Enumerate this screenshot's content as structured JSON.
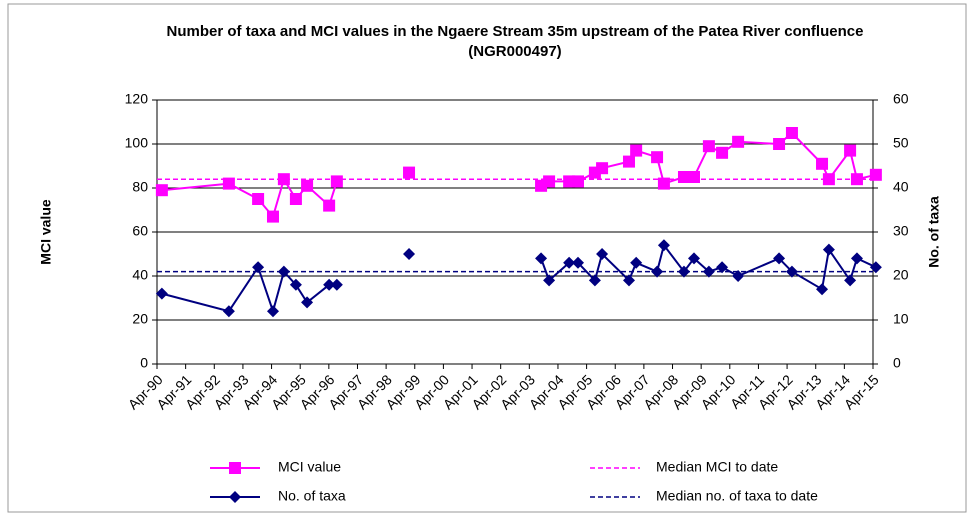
{
  "chart_data": {
    "type": "line",
    "title": "Number of taxa and MCI values in the Ngaere Stream 35m upstream of the Patea River confluence (NGR000497)",
    "ylabel": "MCI value",
    "y2label": "No. of taxa",
    "ylim": [
      0,
      120
    ],
    "yticks": [
      0,
      20,
      40,
      60,
      80,
      100,
      120
    ],
    "y2lim": [
      0,
      60
    ],
    "y2ticks": [
      0,
      10,
      20,
      30,
      40,
      50,
      60
    ],
    "xlim": [
      1990.25,
      2015.25
    ],
    "xticks": [
      {
        "value": 1990.25,
        "label": "Apr-90"
      },
      {
        "value": 1991.25,
        "label": "Apr-91"
      },
      {
        "value": 1992.25,
        "label": "Apr-92"
      },
      {
        "value": 1993.25,
        "label": "Apr-93"
      },
      {
        "value": 1994.25,
        "label": "Apr-94"
      },
      {
        "value": 1995.25,
        "label": "Apr-95"
      },
      {
        "value": 1996.25,
        "label": "Apr-96"
      },
      {
        "value": 1997.25,
        "label": "Apr-97"
      },
      {
        "value": 1998.25,
        "label": "Apr-98"
      },
      {
        "value": 1999.25,
        "label": "Apr-99"
      },
      {
        "value": 2000.25,
        "label": "Apr-00"
      },
      {
        "value": 2001.25,
        "label": "Apr-01"
      },
      {
        "value": 2002.25,
        "label": "Apr-02"
      },
      {
        "value": 2003.25,
        "label": "Apr-03"
      },
      {
        "value": 2004.25,
        "label": "Apr-04"
      },
      {
        "value": 2005.25,
        "label": "Apr-05"
      },
      {
        "value": 2006.25,
        "label": "Apr-06"
      },
      {
        "value": 2007.25,
        "label": "Apr-07"
      },
      {
        "value": 2008.25,
        "label": "Apr-08"
      },
      {
        "value": 2009.25,
        "label": "Apr-09"
      },
      {
        "value": 2010.25,
        "label": "Apr-10"
      },
      {
        "value": 2011.25,
        "label": "Apr-11"
      },
      {
        "value": 2012.25,
        "label": "Apr-12"
      },
      {
        "value": 2013.25,
        "label": "Apr-13"
      },
      {
        "value": 2014.25,
        "label": "Apr-14"
      },
      {
        "value": 2015.25,
        "label": "Apr-15"
      }
    ],
    "grid": true,
    "legend": "bottom",
    "x": [
      1990.42,
      1992.76,
      1993.78,
      1994.3,
      1994.68,
      1995.1,
      1995.49,
      1996.26,
      1996.53,
      null,
      1999.05,
      null,
      2003.66,
      2003.94,
      2004.64,
      2004.95,
      2005.54,
      2005.79,
      2006.73,
      2006.98,
      2007.71,
      2007.95,
      2008.65,
      2009.0,
      2009.52,
      2009.98,
      2010.54,
      2011.97,
      2012.42,
      2013.47,
      2013.71,
      2014.45,
      2014.69,
      2015.35
    ],
    "series": [
      {
        "name": "MCI value",
        "color": "#ff00ff",
        "marker": "square",
        "values": [
          79,
          82,
          75,
          67,
          84,
          75,
          81,
          72,
          83,
          null,
          87,
          null,
          81,
          83,
          83,
          83,
          87,
          89,
          92,
          97,
          94,
          82,
          85,
          85,
          99,
          96,
          101,
          100,
          105,
          91,
          84,
          97,
          84,
          86
        ]
      },
      {
        "name": "No. of taxa",
        "color": "#000080",
        "marker": "diamond",
        "axis": "y2",
        "values": [
          16,
          12,
          22,
          12,
          21,
          18,
          14,
          18,
          18,
          null,
          25,
          null,
          24,
          19,
          23,
          23,
          19,
          25,
          19,
          23,
          21,
          27,
          21,
          24,
          21,
          22,
          20,
          24,
          21,
          17,
          26,
          19,
          24,
          22
        ]
      }
    ],
    "reference_lines": [
      {
        "name": "Median MCI to date",
        "color": "#ff00ff",
        "value": 84
      },
      {
        "name": "Median no. of taxa to date",
        "color": "#000080",
        "value": 21,
        "axis": "y2"
      }
    ]
  }
}
